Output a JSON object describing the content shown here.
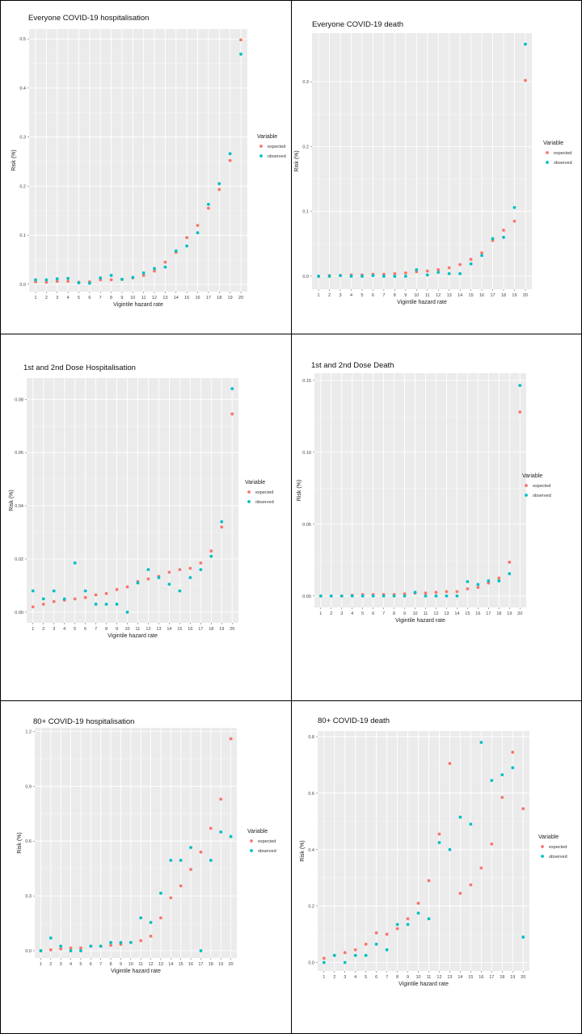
{
  "colors": {
    "panel_bg": "#ebebeb",
    "grid_major": "#ffffff",
    "grid_minor": "#f4f4f4",
    "expected": "#f8766d",
    "observed": "#00bfc4"
  },
  "chart_data": [
    {
      "type": "scatter",
      "title": "Everyone COVID-19 hospitalisation",
      "xlabel": "Vigintile hazard rate",
      "ylabel": "Risk (%)",
      "x": [
        1,
        2,
        3,
        4,
        5,
        6,
        7,
        8,
        9,
        10,
        11,
        12,
        13,
        14,
        15,
        16,
        17,
        18,
        19,
        20
      ],
      "ylim": [
        -0.015,
        0.52
      ],
      "yticks": [
        0.0,
        0.1,
        0.2,
        0.3,
        0.4,
        0.5
      ],
      "ytick_labels": [
        "0.0",
        "0.1",
        "0.2",
        "0.3",
        "0.4",
        "0.5"
      ],
      "legend": {
        "title": "Variable",
        "position": "right"
      },
      "series": [
        {
          "name": "expected",
          "values": [
            0.005,
            0.004,
            0.006,
            0.006,
            0.004,
            0.005,
            0.009,
            0.009,
            0.01,
            0.013,
            0.018,
            0.027,
            0.045,
            0.065,
            0.095,
            0.12,
            0.155,
            0.193,
            0.252,
            0.498
          ]
        },
        {
          "name": "observed",
          "values": [
            0.009,
            0.009,
            0.011,
            0.012,
            0.003,
            0.002,
            0.013,
            0.018,
            0.01,
            0.014,
            0.023,
            0.032,
            0.035,
            0.068,
            0.078,
            0.105,
            0.163,
            0.205,
            0.266,
            0.469
          ]
        }
      ]
    },
    {
      "type": "scatter",
      "title": "Everyone COVID-19 death",
      "xlabel": "Vigintile hazard rate",
      "ylabel": "Risk (%)",
      "x": [
        1,
        2,
        3,
        4,
        5,
        6,
        7,
        8,
        9,
        10,
        11,
        12,
        13,
        14,
        15,
        16,
        17,
        18,
        19,
        20
      ],
      "ylim": [
        -0.02,
        0.375
      ],
      "yticks": [
        0.0,
        0.1,
        0.2,
        0.3
      ],
      "ytick_labels": [
        "0.0",
        "0.1",
        "0.2",
        "0.3"
      ],
      "legend": {
        "title": "Variable",
        "position": "right"
      },
      "series": [
        {
          "name": "expected",
          "values": [
            0.0,
            0.001,
            0.001,
            0.002,
            0.002,
            0.003,
            0.003,
            0.004,
            0.005,
            0.007,
            0.008,
            0.01,
            0.013,
            0.018,
            0.026,
            0.036,
            0.055,
            0.071,
            0.085,
            0.302
          ]
        },
        {
          "name": "observed",
          "values": [
            0.0,
            0.0,
            0.001,
            0.0,
            0.0,
            0.001,
            0.0,
            0.0,
            0.0,
            0.01,
            0.002,
            0.006,
            0.004,
            0.004,
            0.019,
            0.032,
            0.058,
            0.06,
            0.106,
            0.358
          ]
        }
      ]
    },
    {
      "type": "scatter",
      "title": "1st and 2nd Dose Hospitalisation",
      "xlabel": "Vigintile hazard rate",
      "ylabel": "Risk (%)",
      "x": [
        1,
        2,
        3,
        4,
        5,
        6,
        7,
        8,
        9,
        10,
        11,
        12,
        13,
        14,
        15,
        16,
        17,
        18,
        19,
        20
      ],
      "ylim": [
        -0.004,
        0.088
      ],
      "yticks": [
        0.0,
        0.02,
        0.04,
        0.06,
        0.08
      ],
      "ytick_labels": [
        "0.00",
        "0.02",
        "0.04",
        "0.06",
        "0.08"
      ],
      "legend": {
        "title": "Variable",
        "position": "right"
      },
      "series": [
        {
          "name": "expected",
          "values": [
            0.002,
            0.003,
            0.004,
            0.0045,
            0.005,
            0.0055,
            0.0065,
            0.007,
            0.0085,
            0.0095,
            0.0115,
            0.0125,
            0.0135,
            0.015,
            0.016,
            0.0165,
            0.0185,
            0.023,
            0.032,
            0.0745
          ]
        },
        {
          "name": "observed",
          "values": [
            0.008,
            0.005,
            0.008,
            0.005,
            0.0185,
            0.008,
            0.003,
            0.003,
            0.003,
            0.0,
            0.011,
            0.016,
            0.013,
            0.0105,
            0.008,
            0.013,
            0.016,
            0.021,
            0.034,
            0.084
          ]
        }
      ]
    },
    {
      "type": "scatter",
      "title": "1st and 2nd Dose Death",
      "xlabel": "Vigintile hazard rate",
      "ylabel": "Risk (%)",
      "x": [
        1,
        2,
        3,
        4,
        5,
        6,
        7,
        8,
        9,
        10,
        11,
        12,
        13,
        14,
        15,
        16,
        17,
        18,
        19,
        20
      ],
      "ylim": [
        -0.008,
        0.155
      ],
      "yticks": [
        0.0,
        0.05,
        0.1,
        0.15
      ],
      "ytick_labels": [
        "0.00",
        "0.05",
        "0.10",
        "0.15"
      ],
      "legend": {
        "title": "Variable",
        "position": "right"
      },
      "series": [
        {
          "name": "expected",
          "values": [
            0.0,
            0.0,
            0.0,
            0.0005,
            0.001,
            0.001,
            0.001,
            0.001,
            0.0015,
            0.002,
            0.002,
            0.0025,
            0.003,
            0.003,
            0.005,
            0.006,
            0.009,
            0.0125,
            0.0235,
            0.128
          ]
        },
        {
          "name": "observed",
          "values": [
            0.0,
            0.0,
            0.0,
            0.0,
            0.0,
            0.0,
            0.0,
            0.0,
            0.0,
            0.0025,
            0.0,
            0.0,
            0.0,
            0.0,
            0.01,
            0.008,
            0.0105,
            0.0105,
            0.0155,
            0.1465
          ]
        }
      ]
    },
    {
      "type": "scatter",
      "title": "80+ COVID-19 hospitalisation",
      "xlabel": "Vigintile hazard rate",
      "ylabel": "Risk (%)",
      "x": [
        1,
        2,
        3,
        4,
        5,
        6,
        7,
        8,
        9,
        10,
        11,
        12,
        13,
        14,
        15,
        16,
        17,
        18,
        19,
        20
      ],
      "ylim": [
        -0.04,
        1.22
      ],
      "yticks": [
        0.0,
        0.3,
        0.6,
        0.9,
        1.2
      ],
      "ytick_labels": [
        "0.0",
        "0.3",
        "0.6",
        "0.9",
        "1.2"
      ],
      "legend": {
        "title": "Variable",
        "position": "right"
      },
      "series": [
        {
          "name": "expected",
          "values": [
            0.0,
            0.005,
            0.01,
            0.015,
            0.015,
            0.025,
            0.025,
            0.03,
            0.035,
            0.045,
            0.055,
            0.08,
            0.18,
            0.29,
            0.355,
            0.445,
            0.54,
            0.67,
            0.83,
            1.16
          ]
        },
        {
          "name": "observed",
          "values": [
            0.0,
            0.07,
            0.025,
            0.0,
            0.0,
            0.025,
            0.025,
            0.045,
            0.045,
            0.045,
            0.18,
            0.155,
            0.315,
            0.495,
            0.495,
            0.565,
            0.0,
            0.495,
            0.65,
            0.625
          ]
        }
      ]
    },
    {
      "type": "scatter",
      "title": "80+ COVID-19 death",
      "xlabel": "Vigintile hazard rate",
      "ylabel": "Risk (%)",
      "x": [
        1,
        2,
        3,
        4,
        5,
        6,
        7,
        8,
        9,
        10,
        11,
        12,
        13,
        14,
        15,
        16,
        17,
        18,
        19,
        20
      ],
      "ylim": [
        -0.03,
        0.82
      ],
      "yticks": [
        0.0,
        0.2,
        0.4,
        0.6,
        0.8
      ],
      "ytick_labels": [
        "0.0",
        "0.2",
        "0.4",
        "0.6",
        "0.8"
      ],
      "legend": {
        "title": "Variable",
        "position": "right"
      },
      "series": [
        {
          "name": "expected",
          "values": [
            0.015,
            0.025,
            0.035,
            0.045,
            0.065,
            0.105,
            0.1,
            0.12,
            0.155,
            0.21,
            0.29,
            0.455,
            0.705,
            0.245,
            0.275,
            0.335,
            0.42,
            0.585,
            0.745,
            0.545
          ]
        },
        {
          "name": "observed",
          "values": [
            0.0,
            0.025,
            0.0,
            0.025,
            0.025,
            0.065,
            0.045,
            0.135,
            0.135,
            0.175,
            0.155,
            0.425,
            0.4,
            0.515,
            0.49,
            0.78,
            0.645,
            0.665,
            0.69,
            0.09
          ]
        }
      ]
    }
  ]
}
